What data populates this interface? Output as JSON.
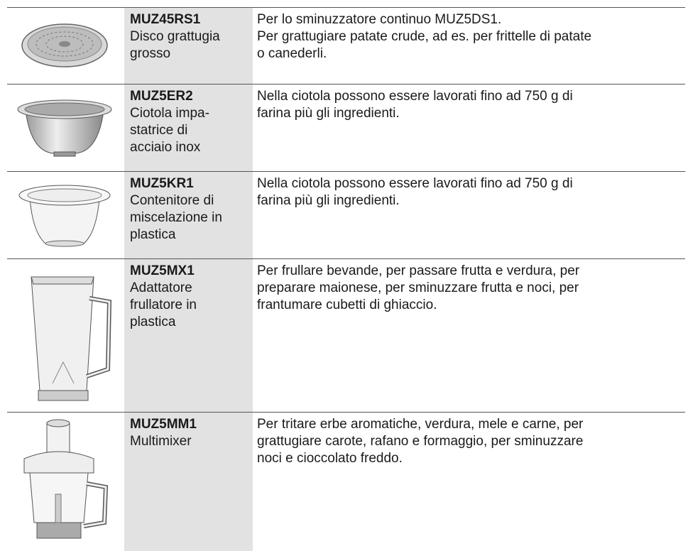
{
  "table": {
    "rows": [
      {
        "code": "MUZ45RS1",
        "name": [
          "Disco grattugia",
          "grosso"
        ],
        "description": [
          "Per lo sminuzzatore continuo MUZ5DS1.",
          "Per grattugiare patate crude, ad es. per frittelle di patate",
          "o canederli."
        ]
      },
      {
        "code": "MUZ5ER2",
        "name": [
          "Ciotola impa-",
          "statrice di",
          "acciaio inox"
        ],
        "description": [
          "Nella ciotola possono essere lavorati fino ad 750 g di",
          "farina più gli ingredienti."
        ]
      },
      {
        "code": "MUZ5KR1",
        "name": [
          "Contenitore di",
          "miscelazione in",
          "plastica"
        ],
        "description": [
          "Nella ciotola possono essere lavorati fino ad 750 g di",
          "farina più gli ingredienti."
        ]
      },
      {
        "code": "MUZ5MX1",
        "name": [
          "Adattatore",
          "frullatore in",
          "plastica"
        ],
        "description": [
          "Per frullare bevande, per passare frutta e verdura, per",
          "preparare maionese, per sminuzzare frutta e noci, per",
          "frantumare cubetti di ghiaccio."
        ]
      },
      {
        "code": "MUZ5MM1",
        "name": [
          "Multimixer"
        ],
        "description": [
          "Per tritare erbe aromatiche, verdura, mele e carne, per",
          "grattugiare carote, rafano e formaggio, per sminuzzare",
          "noci e cioccolato freddo."
        ]
      }
    ]
  }
}
